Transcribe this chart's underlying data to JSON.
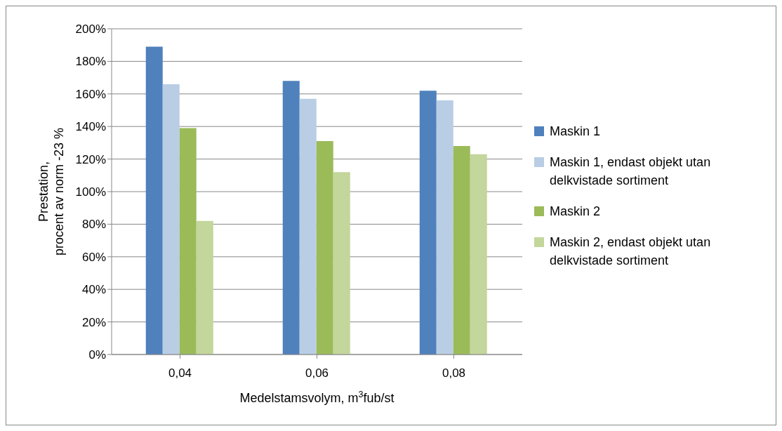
{
  "chart_data": {
    "type": "bar",
    "categories": [
      "0,04",
      "0,06",
      "0,08"
    ],
    "series": [
      {
        "name": "Maskin 1",
        "color": "#4f81bd",
        "values": [
          189,
          168,
          162
        ]
      },
      {
        "name": "Maskin 1, endast objekt utan delkvistade sortiment",
        "color": "#b9cde5",
        "values": [
          166,
          157,
          156
        ]
      },
      {
        "name": "Maskin 2",
        "color": "#9bbb59",
        "values": [
          139,
          131,
          128
        ]
      },
      {
        "name": "Maskin 2, endast objekt utan delkvistade sortiment",
        "color": "#c3d69b",
        "values": [
          82,
          112,
          123
        ]
      }
    ],
    "ylabel": "Prestation,\nprocent av norm -23 %",
    "xlabel": "Medelstamsvolym, m$^{3}$fub/st",
    "ylim": [
      0,
      200
    ],
    "yticks": [
      {
        "value": 0,
        "label": "0%"
      },
      {
        "value": 20,
        "label": "20%"
      },
      {
        "value": 40,
        "label": "40%"
      },
      {
        "value": 60,
        "label": "60%"
      },
      {
        "value": 80,
        "label": "80%"
      },
      {
        "value": 100,
        "label": "100%"
      },
      {
        "value": 120,
        "label": "120%"
      },
      {
        "value": 140,
        "label": "140%"
      },
      {
        "value": 160,
        "label": "160%"
      },
      {
        "value": 180,
        "label": "180%"
      },
      {
        "value": 200,
        "label": "200%"
      }
    ],
    "grid": "y",
    "legend": "right"
  }
}
